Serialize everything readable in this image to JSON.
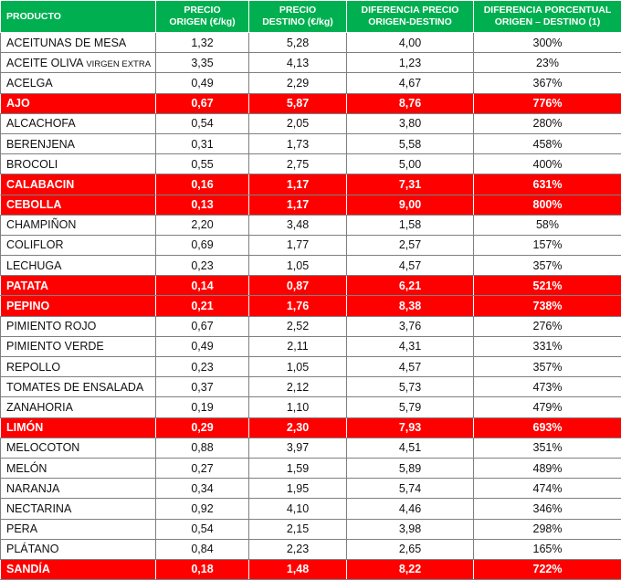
{
  "headers": {
    "producto": "PRODUCTO",
    "precio_origen_1": "PRECIO",
    "precio_origen_2": "ORIGEN (€/kg)",
    "precio_destino_1": "PRECIO",
    "precio_destino_2": "DESTINO (€/kg)",
    "diferencia_1": "DIFERENCIA PRECIO",
    "diferencia_2": "ORIGEN-DESTINO",
    "porcentual_1": "DIFERENCIA PORCENTUAL",
    "porcentual_2": "ORIGEN – DESTINO (1)"
  },
  "colors": {
    "header_bg": "#00b050",
    "highlight_bg": "#ff0000"
  },
  "rows": [
    {
      "name": "ACEITUNAS DE MESA",
      "origen": "1,32",
      "destino": "5,28",
      "diferencia": "4,00",
      "porcentaje": "300%",
      "highlight": false
    },
    {
      "name": "ACEITE OLIVA",
      "name_small": "VIRGEN EXTRA",
      "origen": "3,35",
      "destino": "4,13",
      "diferencia": "1,23",
      "porcentaje": "23%",
      "highlight": false
    },
    {
      "name": "ACELGA",
      "origen": "0,49",
      "destino": "2,29",
      "diferencia": "4,67",
      "porcentaje": "367%",
      "highlight": false
    },
    {
      "name": "AJO",
      "origen": "0,67",
      "destino": "5,87",
      "diferencia": "8,76",
      "porcentaje": "776%",
      "highlight": true
    },
    {
      "name": "ALCACHOFA",
      "origen": "0,54",
      "destino": "2,05",
      "diferencia": "3,80",
      "porcentaje": "280%",
      "highlight": false
    },
    {
      "name": "BERENJENA",
      "origen": "0,31",
      "destino": "1,73",
      "diferencia": "5,58",
      "porcentaje": "458%",
      "highlight": false
    },
    {
      "name": "BROCOLI",
      "origen": "0,55",
      "destino": "2,75",
      "diferencia": "5,00",
      "porcentaje": "400%",
      "highlight": false
    },
    {
      "name": "CALABACIN",
      "origen": "0,16",
      "destino": "1,17",
      "diferencia": "7,31",
      "porcentaje": "631%",
      "highlight": true
    },
    {
      "name": "CEBOLLA",
      "origen": "0,13",
      "destino": "1,17",
      "diferencia": "9,00",
      "porcentaje": "800%",
      "highlight": true
    },
    {
      "name": "CHAMPIÑON",
      "origen": "2,20",
      "destino": "3,48",
      "diferencia": "1,58",
      "porcentaje": "58%",
      "highlight": false
    },
    {
      "name": "COLIFLOR",
      "origen": "0,69",
      "destino": "1,77",
      "diferencia": "2,57",
      "porcentaje": "157%",
      "highlight": false
    },
    {
      "name": "LECHUGA",
      "origen": "0,23",
      "destino": "1,05",
      "diferencia": "4,57",
      "porcentaje": "357%",
      "highlight": false
    },
    {
      "name": "PATATA",
      "origen": "0,14",
      "destino": "0,87",
      "diferencia": "6,21",
      "porcentaje": "521%",
      "highlight": true
    },
    {
      "name": "PEPINO",
      "origen": "0,21",
      "destino": "1,76",
      "diferencia": "8,38",
      "porcentaje": "738%",
      "highlight": true
    },
    {
      "name": "PIMIENTO ROJO",
      "origen": "0,67",
      "destino": "2,52",
      "diferencia": "3,76",
      "porcentaje": "276%",
      "highlight": false
    },
    {
      "name": "PIMIENTO VERDE",
      "origen": "0,49",
      "destino": "2,11",
      "diferencia": "4,31",
      "porcentaje": "331%",
      "highlight": false
    },
    {
      "name": "REPOLLO",
      "origen": "0,23",
      "destino": "1,05",
      "diferencia": "4,57",
      "porcentaje": "357%",
      "highlight": false
    },
    {
      "name": "TOMATES DE ENSALADA",
      "origen": "0,37",
      "destino": "2,12",
      "diferencia": "5,73",
      "porcentaje": "473%",
      "highlight": false
    },
    {
      "name": "ZANAHORIA",
      "origen": "0,19",
      "destino": "1,10",
      "diferencia": "5,79",
      "porcentaje": "479%",
      "highlight": false
    },
    {
      "name": "LIMÓN",
      "origen": "0,29",
      "destino": "2,30",
      "diferencia": "7,93",
      "porcentaje": "693%",
      "highlight": true
    },
    {
      "name": "MELOCOTON",
      "origen": "0,88",
      "destino": "3,97",
      "diferencia": "4,51",
      "porcentaje": "351%",
      "highlight": false
    },
    {
      "name": "MELÓN",
      "origen": "0,27",
      "destino": "1,59",
      "diferencia": "5,89",
      "porcentaje": "489%",
      "highlight": false
    },
    {
      "name": "NARANJA",
      "origen": "0,34",
      "destino": "1,95",
      "diferencia": "5,74",
      "porcentaje": "474%",
      "highlight": false
    },
    {
      "name": "NECTARINA",
      "origen": "0,92",
      "destino": "4,10",
      "diferencia": "4,46",
      "porcentaje": "346%",
      "highlight": false
    },
    {
      "name": "PERA",
      "origen": "0,54",
      "destino": "2,15",
      "diferencia": "3,98",
      "porcentaje": "298%",
      "highlight": false
    },
    {
      "name": "PLÁTANO",
      "origen": "0,84",
      "destino": "2,23",
      "diferencia": "2,65",
      "porcentaje": "165%",
      "highlight": false
    },
    {
      "name": "SANDÍA",
      "origen": "0,18",
      "destino": "1,48",
      "diferencia": "8,22",
      "porcentaje": "722%",
      "highlight": true
    }
  ]
}
